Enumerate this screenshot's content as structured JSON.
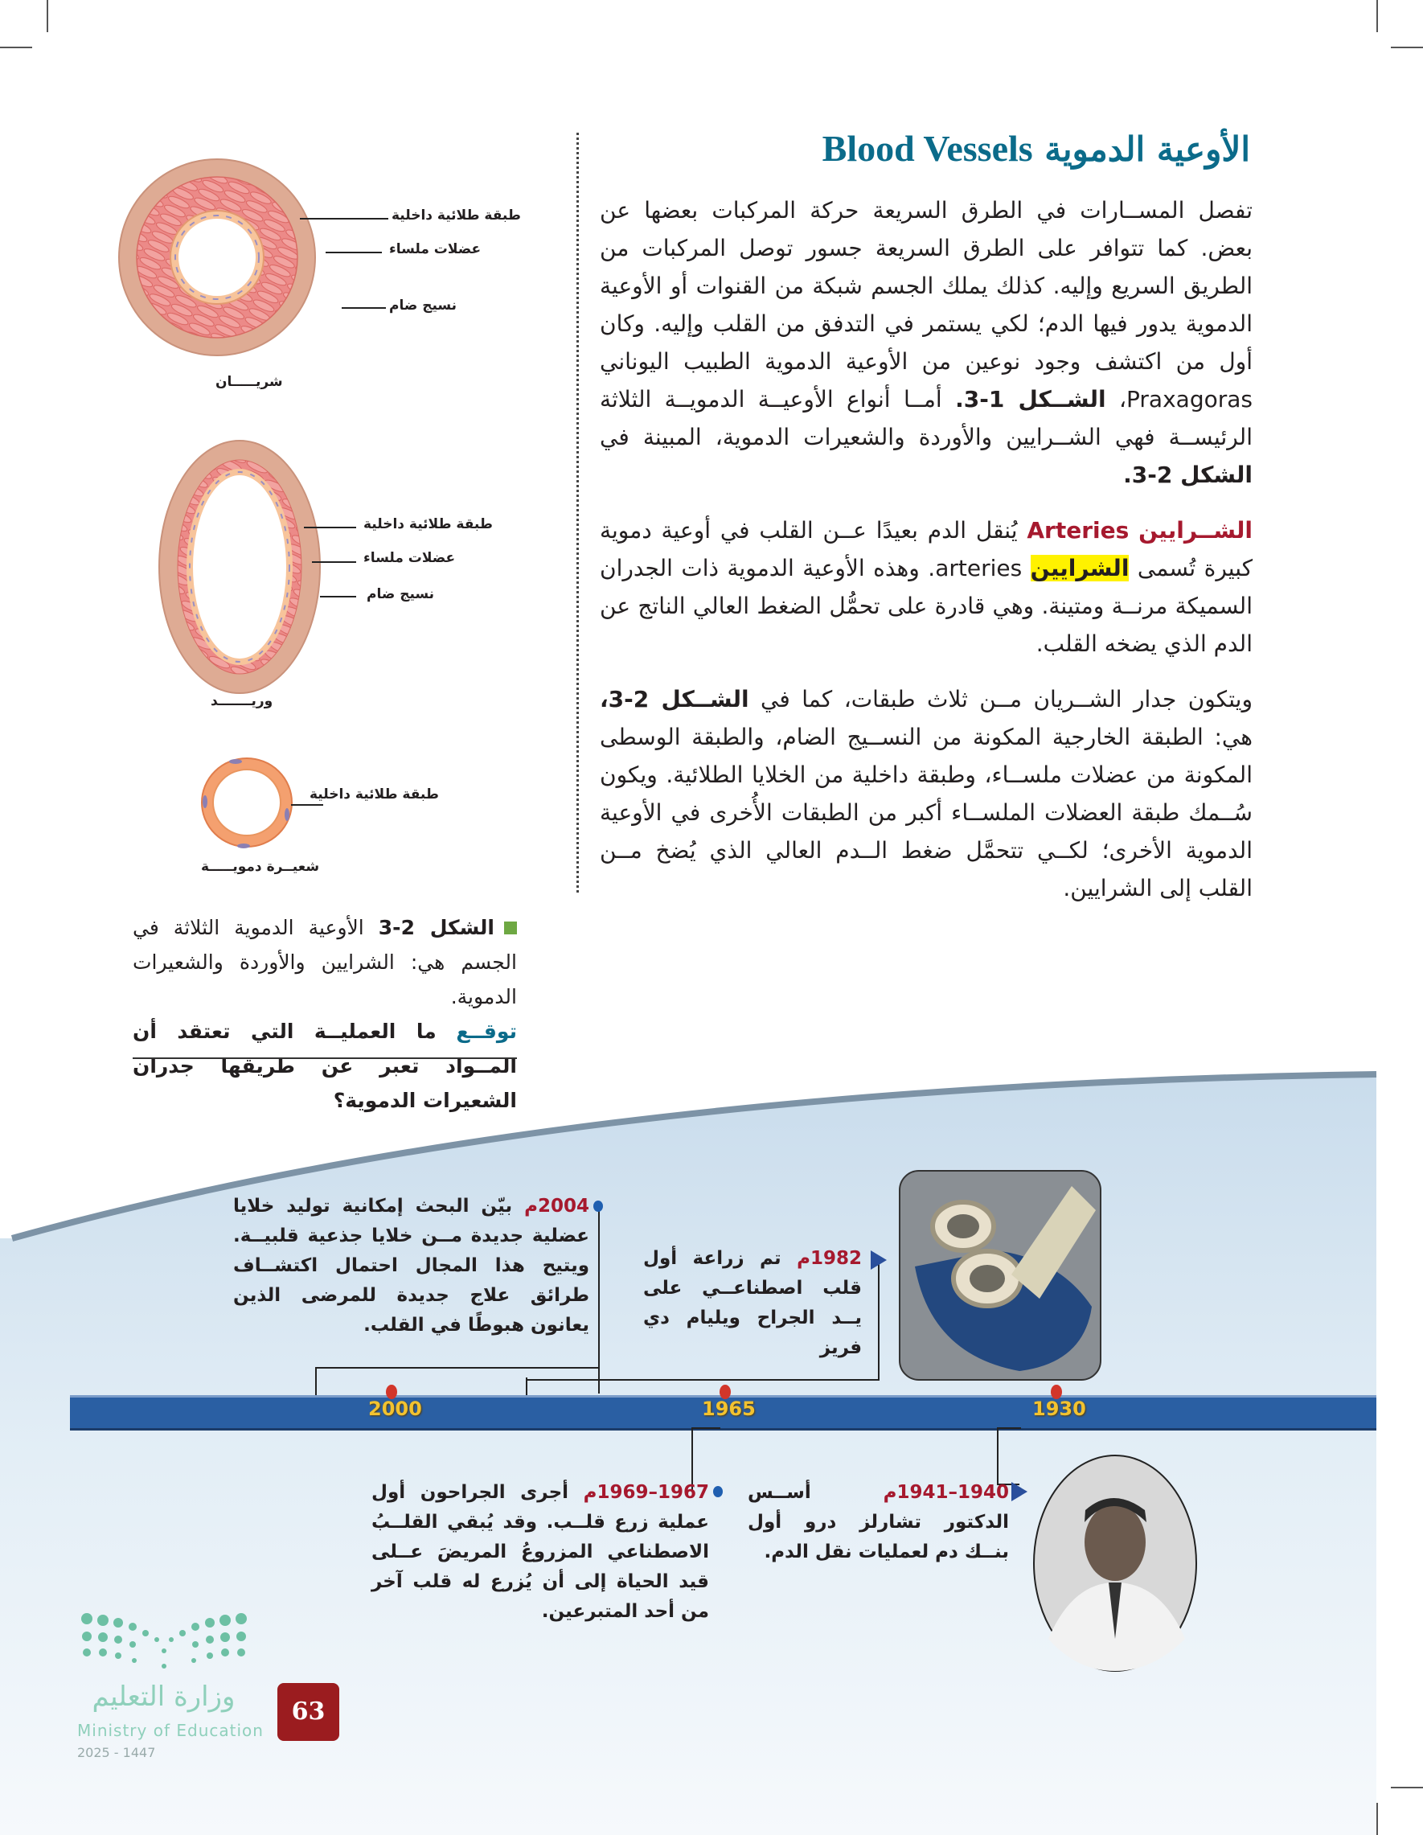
{
  "section": {
    "title_ar": "الأوعية الدموية",
    "title_en": "Blood Vessels"
  },
  "paragraphs": {
    "p1": "تفصل المســارات في الطرق السريعة حركة المركبات بعضها عن بعض. كما تتوافر على الطرق السريعة جسور توصل المركبات من الطريق السريع وإليه. كذلك يملك الجسم شبكة من القنوات أو الأوعية الدموية يدور فيها الدم؛ لكي يستمر في التدفق من القلب وإليه. وكان أول من اكتشف وجود نوعين من الأوعية الدموية الطبيب اليوناني Praxagoras،",
    "p1_ref1": "الشــكل 1-3.",
    "p1_b": "أمــا أنواع الأوعيــة الدمويــة الثلاثة الرئيســة فهي الشــرايين والأوردة والشعيرات الدموية، المبينة في",
    "p1_ref2": "الشكل 2-3.",
    "p2_term_ar": "الشــرايين",
    "p2_term_en": "Arteries",
    "p2_a": "يُنقل الدم بعيدًا عــن القلب في أوعية دموية كبيرة تُسمى",
    "p2_highlight": "الشرايين",
    "p2_b": "arteries. وهذه الأوعية الدموية ذات الجدران السميكة مرنــة ومتينة. وهي قادرة على تحمُّل الضغط العالي الناتج عن الدم الذي يضخه القلب.",
    "p3_a": "ويتكون جدار الشــريان مــن ثلاث طبقات، كما في",
    "p3_ref": "الشــكل 2-3،",
    "p3_b": "هي: الطبقة الخارجية المكونة من النســيج الضام، والطبقة الوسطى المكونة من عضلات ملســاء، وطبقة داخلية من الخلايا الطلائية. ويكون سُــمك طبقة العضلات الملســاء أكبر من الطبقات الأُخرى في الأوعية الدموية الأخرى؛ لكــي تتحمَّل ضغط الــدم العالي الذي يُضخ مــن القلب إلى الشرايين."
  },
  "figure": {
    "artery": {
      "name": "شريـــــان",
      "labels": [
        "طبقة طلائية داخلية",
        "عضلات ملساء",
        "نسيج ضام"
      ]
    },
    "vein": {
      "name": "وريـــــــد",
      "labels": [
        "طبقة طلائية داخلية",
        "عضلات ملساء",
        "نسيج ضام"
      ]
    },
    "capillary": {
      "name": "شعيــرة دمويـــــة",
      "labels": [
        "طبقة طلائية داخلية"
      ]
    },
    "caption": {
      "ref": "الشكل 2-3",
      "text": "الأوعية الدموية الثلاثة في الجسم هي: الشرايين والأوردة والشعيرات الدموية.",
      "prompt_label": "توقــع",
      "prompt_text": "ما العمليــة التي تعتقد أن المــواد تعبر عن طريقها جدران الشعيرات الدموية؟"
    }
  },
  "timeline": {
    "ticks": [
      "2000",
      "1965",
      "1930"
    ],
    "events": [
      {
        "year": "2004م",
        "text": "بيّن البحث إمكانية توليد خلايا عضلية جديدة مــن خلايا جذعية قلبيــة. ويتيح هذا المجال احتمال اكتشــاف طرائق علاج جديدة للمرضى الذين يعانون هبوطًا في القلب."
      },
      {
        "year": "1982م",
        "text": "تم زراعة أول قلب اصطناعــي على يــد الجراح ويليام دي فريز"
      },
      {
        "year": "1967–1969م",
        "text": "أجرى الجراحون أول عملية زرع قلــب. وقد يُبقي القلــبُ الاصطناعي المزروعُ المريضَ عــلى قيد الحياة إلى أن يُزرع له قلب آخر من أحد المتبرعين."
      },
      {
        "year": "1940–1941م",
        "text": "أســس الدكتور تشارلز درو أول بنــك دم لعمليات نقل الدم."
      }
    ],
    "bar_color": "#2a5fa3",
    "tick_color": "#f2c230"
  },
  "footer": {
    "page_number": "63",
    "logo_ar": "وزارة التعليم",
    "logo_en": "Ministry of Education",
    "year": "2025 - 1447"
  },
  "colors": {
    "heading": "#0b6b8a",
    "term": "#a6192e",
    "highlight": "#fff200",
    "page_badge": "#9b1c1f"
  }
}
